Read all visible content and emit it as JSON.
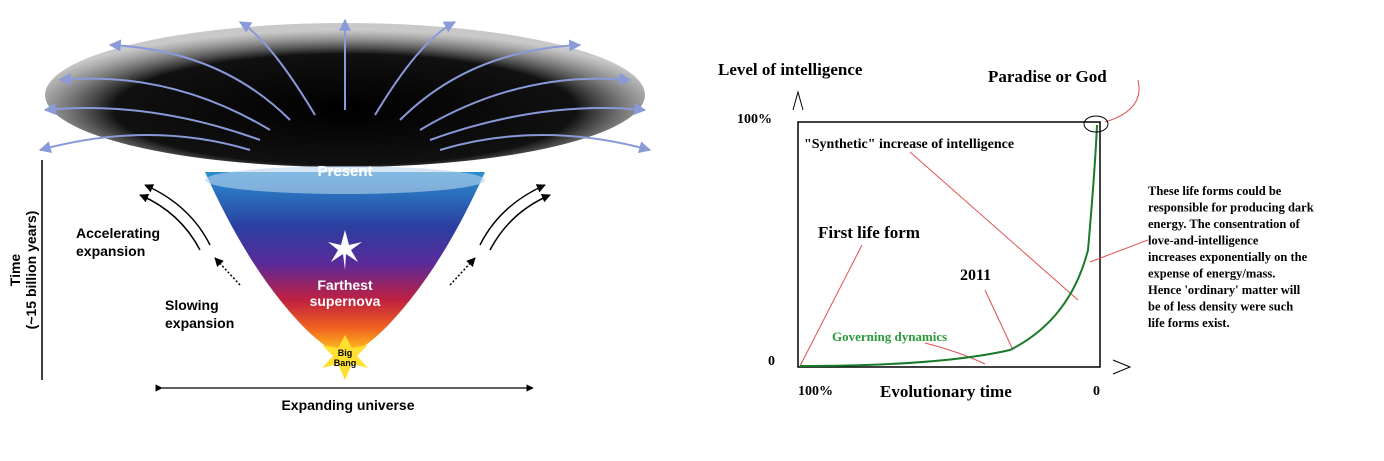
{
  "left": {
    "present": "Present",
    "accelerating": [
      "Accelerating",
      "expansion"
    ],
    "slowing": [
      "Slowing",
      "expansion"
    ],
    "supernova": [
      "Farthest",
      "supernova"
    ],
    "big_bang": [
      "Big",
      "Bang"
    ],
    "time_axis": [
      "Time",
      "(~15 billion years)"
    ],
    "expanding": "Expanding universe"
  },
  "right": {
    "y_axis_label": "Level of intelligence",
    "y_top": "100%",
    "y_bottom": "0",
    "x_axis_label": "Evolutionary time",
    "x_left": "100%",
    "x_right": "0",
    "peak": "Paradise or God",
    "synthetic": "\"Synthetic\" increase of intelligence",
    "first_life": "First life form",
    "year": "2011",
    "governing": "Governing dynamics",
    "note": [
      "These life forms could be",
      "responsible for producing dark",
      "energy. The consentration of",
      "love-and-intelligence",
      "increases exponentially on the",
      "expense of energy/mass.",
      "Hence 'ordinary' matter will",
      "be of less density were such",
      "life forms exist."
    ]
  }
}
